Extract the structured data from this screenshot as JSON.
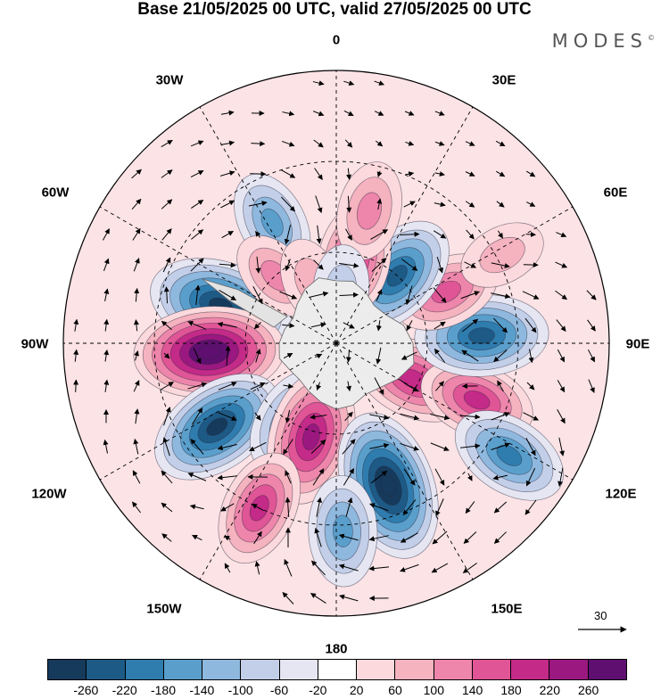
{
  "title": "Base 21/05/2025 00 UTC, valid 27/05/2025 00 UTC",
  "brand": "MODES",
  "brand_mark": "©",
  "longitude_labels": {
    "top": "0",
    "bottom": "180",
    "left": "90W",
    "right": "90E",
    "upper_left_near": "30W",
    "upper_right_near": "30E",
    "upper_left_far": "60W",
    "upper_right_far": "60E",
    "lower_left_far": "120W",
    "lower_right_far": "120E",
    "lower_left_near": "150W",
    "lower_right_near": "150E"
  },
  "vector_scale": {
    "label": "30"
  },
  "colorbar": {
    "colors": [
      "#163a5c",
      "#1d5a86",
      "#2f7cae",
      "#5a9fcc",
      "#8fb8de",
      "#c3cfe8",
      "#e6e6f3",
      "#ffffff",
      "#fbd9dc",
      "#f5b2bf",
      "#ee86ab",
      "#e05596",
      "#c42a88",
      "#9b1880",
      "#5f0f70"
    ],
    "ticks": [
      "-260",
      "-220",
      "-180",
      "-140",
      "-100",
      "-60",
      "-20",
      "20",
      "60",
      "100",
      "140",
      "180",
      "220",
      "260"
    ]
  },
  "anomalies": [
    {
      "lon": -72,
      "lat": 50,
      "value": -260
    },
    {
      "lon": -94,
      "lat": 48,
      "value": 280
    },
    {
      "lon": -125,
      "lat": 42,
      "value": -240
    },
    {
      "lon": -150,
      "lat": 60,
      "value": -140
    },
    {
      "lon": -165,
      "lat": 58,
      "value": 230
    },
    {
      "lon": 160,
      "lat": 40,
      "value": -280
    },
    {
      "lon": 178,
      "lat": 28,
      "value": -140
    },
    {
      "lon": -155,
      "lat": 30,
      "value": 160
    },
    {
      "lon": 115,
      "lat": 62,
      "value": 180
    },
    {
      "lon": 112,
      "lat": 40,
      "value": 160
    },
    {
      "lon": 87,
      "lat": 42,
      "value": -220
    },
    {
      "lon": 123,
      "lat": 22,
      "value": -170
    },
    {
      "lon": 65,
      "lat": 50,
      "value": 130
    },
    {
      "lon": 42,
      "lat": 60,
      "value": -200
    },
    {
      "lon": 12,
      "lat": 62,
      "value": 160
    },
    {
      "lon": 14,
      "lat": 45,
      "value": 100
    },
    {
      "lon": -28,
      "lat": 45,
      "value": -120
    },
    {
      "lon": -42,
      "lat": 60,
      "value": 80
    },
    {
      "lon": -22,
      "lat": 68,
      "value": 60
    },
    {
      "lon": 5,
      "lat": 72,
      "value": -60
    },
    {
      "lon": 62,
      "lat": 28,
      "value": 60
    }
  ]
}
